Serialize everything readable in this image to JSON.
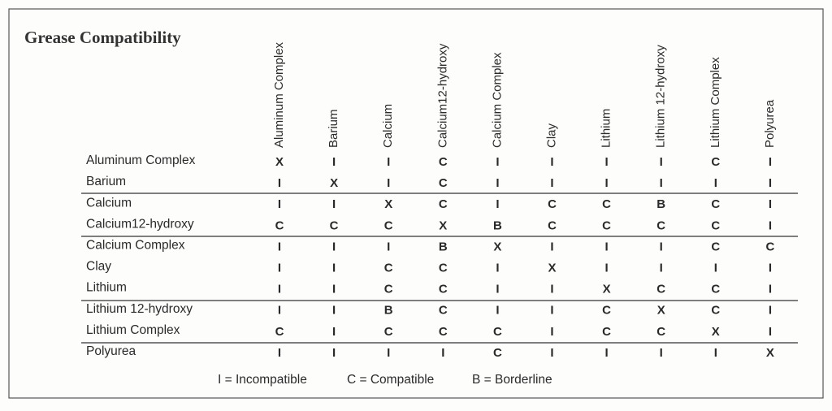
{
  "title": "Grease Compatibility",
  "columns": [
    "Aluminum Complex",
    "Barium",
    "Calcium",
    "Calcium12-hydroxy",
    "Calcium Complex",
    "Clay",
    "Lithium",
    "Lithium 12-hydroxy",
    "Lithium Complex",
    "Polyurea"
  ],
  "rows": [
    {
      "label": "Aluminum Complex",
      "cells": [
        "X",
        "I",
        "I",
        "C",
        "I",
        "I",
        "I",
        "I",
        "C",
        "I"
      ]
    },
    {
      "label": "Barium",
      "cells": [
        "I",
        "X",
        "I",
        "C",
        "I",
        "I",
        "I",
        "I",
        "I",
        "I"
      ]
    },
    {
      "label": "Calcium",
      "cells": [
        "I",
        "I",
        "X",
        "C",
        "I",
        "C",
        "C",
        "B",
        "C",
        "I"
      ]
    },
    {
      "label": "Calcium12-hydroxy",
      "cells": [
        "C",
        "C",
        "C",
        "X",
        "B",
        "C",
        "C",
        "C",
        "C",
        "I"
      ]
    },
    {
      "label": "Calcium Complex",
      "cells": [
        "I",
        "I",
        "I",
        "B",
        "X",
        "I",
        "I",
        "I",
        "C",
        "C"
      ]
    },
    {
      "label": "Clay",
      "cells": [
        "I",
        "I",
        "C",
        "C",
        "I",
        "X",
        "I",
        "I",
        "I",
        "I"
      ]
    },
    {
      "label": "Lithium",
      "cells": [
        "I",
        "I",
        "C",
        "C",
        "I",
        "I",
        "X",
        "C",
        "C",
        "I"
      ]
    },
    {
      "label": "Lithium 12-hydroxy",
      "cells": [
        "I",
        "I",
        "B",
        "C",
        "I",
        "I",
        "C",
        "X",
        "C",
        "I"
      ]
    },
    {
      "label": "Lithium Complex",
      "cells": [
        "C",
        "I",
        "C",
        "C",
        "C",
        "I",
        "C",
        "C",
        "X",
        "I"
      ]
    },
    {
      "label": "Polyurea",
      "cells": [
        "I",
        "I",
        "I",
        "I",
        "C",
        "I",
        "I",
        "I",
        "I",
        "X"
      ]
    }
  ],
  "legend": [
    "I = Incompatible",
    "C = Compatible",
    "B = Borderline"
  ]
}
